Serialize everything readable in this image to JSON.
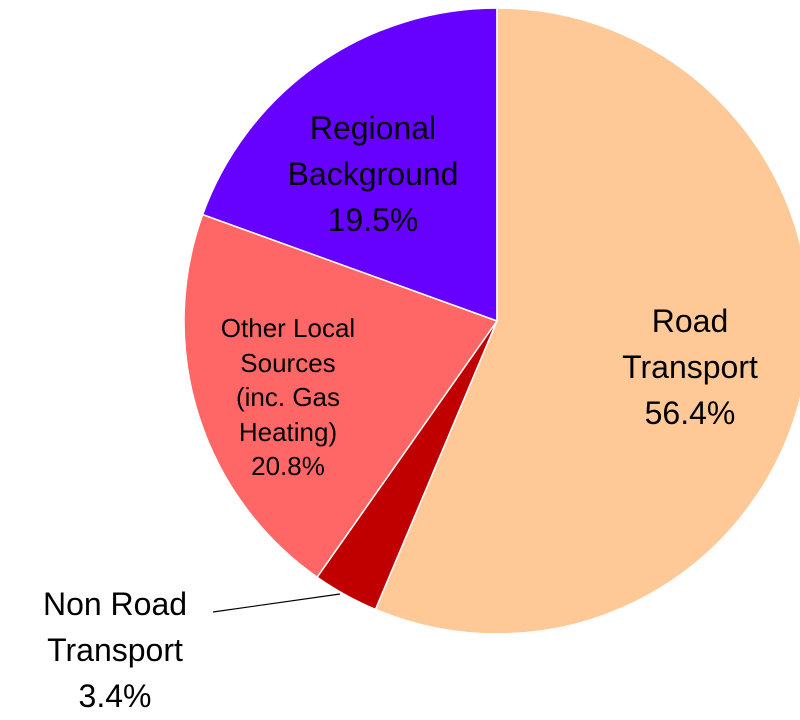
{
  "chart_data": {
    "type": "pie",
    "categories": [
      "Road Transport",
      "Non Road Transport",
      "Other Local Sources (inc. Gas Heating)",
      "Regional Background"
    ],
    "values": [
      56.4,
      3.4,
      20.8,
      19.5
    ],
    "value_labels": [
      "56.4%",
      "3.4%",
      "20.8%",
      "19.5%"
    ],
    "colors": [
      "#FFC997",
      "#C00000",
      "#FF6666",
      "#6600FF"
    ]
  }
}
